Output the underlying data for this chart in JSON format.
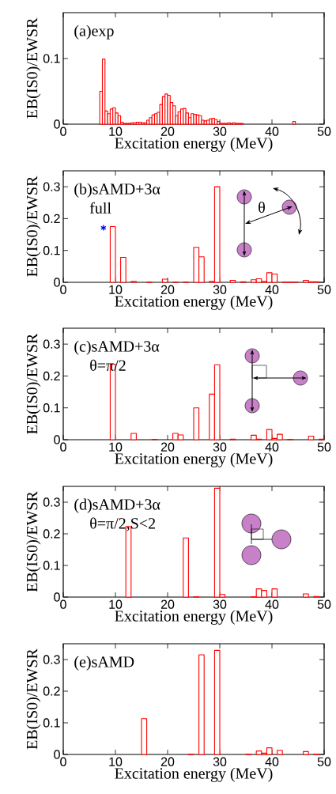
{
  "chart_data": [
    {
      "type": "bar",
      "title": "(a)exp",
      "xlabel": "Excitation energy (MeV)",
      "ylabel": "EB(IS0)/EWSR",
      "color": "#ff0000",
      "x": [
        7.25,
        7.75,
        8.25,
        8.75,
        9.25,
        9.75,
        10.25,
        10.75,
        11.25,
        11.75,
        12.25,
        12.75,
        13.25,
        13.75,
        14.25,
        14.75,
        15.25,
        15.75,
        16.25,
        16.75,
        17.25,
        17.75,
        18.25,
        18.75,
        19.25,
        19.75,
        20.25,
        20.75,
        21.25,
        21.75,
        22.25,
        22.75,
        23.25,
        23.75,
        24.25,
        24.75,
        25.25,
        25.75,
        26.25,
        26.75,
        27.25,
        27.75,
        28.25,
        28.75,
        29.25,
        29.75,
        30.25,
        30.75,
        31.25,
        31.75,
        32.25,
        32.75,
        33.25,
        33.75,
        34.25,
        44.25
      ],
      "values": [
        0.05,
        0.099,
        0.02,
        0.016,
        0.023,
        0.025,
        0.017,
        0.013,
        0.003,
        0.001,
        0.001,
        0.001,
        0.002,
        0.002,
        0.003,
        0.003,
        0.002,
        0.002,
        0.006,
        0.01,
        0.014,
        0.016,
        0.018,
        0.03,
        0.042,
        0.046,
        0.044,
        0.033,
        0.028,
        0.013,
        0.019,
        0.023,
        0.024,
        0.017,
        0.01,
        0.016,
        0.015,
        0.014,
        0.013,
        0.006,
        0.005,
        0.006,
        0.008,
        0.009,
        0.007,
        0.004,
        0.001,
        0.001,
        0.001,
        0.002,
        0.001,
        0.002,
        0.001,
        0.001,
        0.001,
        0.004
      ],
      "xlim": [
        0,
        50
      ],
      "xticks": [
        0,
        10,
        20,
        30,
        40,
        50
      ],
      "ylim": [
        0,
        0.17
      ],
      "yticks": [
        0,
        0.1
      ]
    },
    {
      "type": "bar",
      "title": "(b)sAMD+3α",
      "subtitle": "full",
      "xlabel": "Excitation energy (MeV)",
      "ylabel": "EB(IS0)/EWSR",
      "annotations": [
        "θ"
      ],
      "series": [
        {
          "type": "bar",
          "color": "#ff0000",
          "x": [
            9.5,
            11.5,
            13.5,
            16.5,
            19.5,
            21.5,
            23.5,
            25.5,
            26.5,
            28.5,
            29.5,
            32.5,
            34.5,
            36.5,
            37.5,
            38.5,
            39.5,
            40.5,
            42.5,
            43.5,
            44.5,
            46.5,
            47.5,
            48.5
          ],
          "values": [
            0.175,
            0.078,
            0.003,
            0.001,
            0.01,
            0.001,
            0.001,
            0.11,
            0.08,
            0.003,
            0.3,
            0.006,
            0.002,
            0.008,
            0.011,
            0.003,
            0.03,
            0.026,
            0.001,
            0.001,
            0.001,
            0.006,
            0.002,
            0.002
          ]
        },
        {
          "type": "scatter",
          "color": "#0000ff",
          "marker": "cross",
          "x": [
            7.7
          ],
          "values": [
            0.171
          ]
        }
      ],
      "xlim": [
        0,
        50
      ],
      "xticks": [
        0,
        10,
        20,
        30,
        40,
        50
      ],
      "ylim": [
        0,
        0.35
      ],
      "yticks": [
        0,
        0.1,
        0.2,
        0.3
      ]
    },
    {
      "type": "bar",
      "title": "(c)sAMD+3α",
      "subtitle": "θ=π/2",
      "xlabel": "Excitation energy (MeV)",
      "ylabel": "EB(IS0)/EWSR",
      "color": "#ff0000",
      "x": [
        9.5,
        13.5,
        17.5,
        21.5,
        22.5,
        25.5,
        28.5,
        29.5,
        32.5,
        36.5,
        37.5,
        39.5,
        40.5,
        41.5,
        43.5,
        47.5,
        49.5
      ],
      "values": [
        0.237,
        0.02,
        0.001,
        0.02,
        0.015,
        0.1,
        0.143,
        0.235,
        0.002,
        0.014,
        0.002,
        0.032,
        0.004,
        0.017,
        0.001,
        0.011,
        0.002
      ],
      "xlim": [
        0,
        50
      ],
      "xticks": [
        0,
        10,
        20,
        30,
        40,
        50
      ],
      "ylim": [
        0,
        0.35
      ],
      "yticks": [
        0,
        0.1,
        0.2,
        0.3
      ]
    },
    {
      "type": "bar",
      "title": "(d)sAMD+3α",
      "subtitle": "θ=π/2,S<2",
      "xlabel": "Excitation energy (MeV)",
      "ylabel": "EB(IS0)/EWSR",
      "color": "#ff0000",
      "x": [
        12.5,
        23.5,
        25.5,
        29.5,
        30.5,
        36.5,
        37.5,
        38.5,
        40.5,
        46.5,
        48.5
      ],
      "values": [
        0.223,
        0.187,
        0.001,
        0.344,
        0.008,
        0.001,
        0.026,
        0.021,
        0.026,
        0.01,
        0.002
      ],
      "xlim": [
        0,
        50
      ],
      "xticks": [
        0,
        10,
        20,
        30,
        40,
        50
      ],
      "ylim": [
        0,
        0.35
      ],
      "yticks": [
        0,
        0.1,
        0.2,
        0.3
      ]
    },
    {
      "type": "bar",
      "title": "(e)sAMD",
      "xlabel": "Excitation energy (MeV)",
      "ylabel": "EB(IS0)/EWSR",
      "color": "#ff0000",
      "x": [
        15.5,
        24.5,
        26.5,
        29.5,
        35.5,
        37.5,
        38.5,
        39.5,
        41.5,
        46.5,
        48.5
      ],
      "values": [
        0.113,
        0.001,
        0.315,
        0.329,
        0.001,
        0.011,
        0.004,
        0.021,
        0.013,
        0.009,
        0.001
      ],
      "xlim": [
        0,
        50
      ],
      "xticks": [
        0,
        10,
        20,
        30,
        40,
        50
      ],
      "ylim": [
        0,
        0.35
      ],
      "yticks": [
        0,
        0.1,
        0.2,
        0.3
      ]
    }
  ]
}
